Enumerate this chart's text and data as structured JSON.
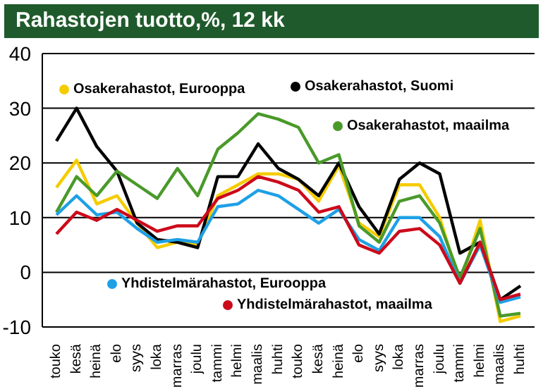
{
  "chart_data": {
    "type": "line",
    "title": "Rahastojen tuotto,%, 12 kk",
    "categories": [
      "touko",
      "kesä",
      "heinä",
      "elo",
      "syys",
      "loka",
      "marras",
      "joulu",
      "tammi",
      "helmi",
      "maalis",
      "huhti",
      "touko",
      "kesä",
      "heinä",
      "elo",
      "syys",
      "loka",
      "marras",
      "joulu",
      "tammi",
      "helmi",
      "maalis",
      "huhti"
    ],
    "series": [
      {
        "name": "Osakerahastot, Eurooppa",
        "color": "#f5cc00",
        "values": [
          15.5,
          20.5,
          12.5,
          14,
          9,
          4.5,
          5.5,
          5,
          14,
          16,
          18,
          18,
          17,
          13,
          19.5,
          9,
          6.5,
          16,
          16,
          10,
          -2,
          9.5,
          -9,
          -8
        ]
      },
      {
        "name": "Osakerahastot, Suomi",
        "color": "#000000",
        "values": [
          24,
          30,
          23,
          18.5,
          9,
          6,
          5.5,
          4.5,
          17.5,
          17.5,
          23.5,
          19,
          17,
          14,
          20,
          12,
          7,
          17,
          20,
          18,
          3.5,
          5.5,
          -5,
          -2.5
        ]
      },
      {
        "name": "Osakerahastot, maailma",
        "color": "#4a9a2a",
        "values": [
          11,
          17.5,
          14,
          18.5,
          16,
          13.5,
          19,
          14,
          22.5,
          25.5,
          29,
          28,
          26.5,
          20,
          21.5,
          8.5,
          5.5,
          13,
          14,
          9,
          -1,
          8,
          -8,
          -7.5
        ]
      },
      {
        "name": "Yhdistelmärahastot, Eurooppa",
        "color": "#1ea0e6",
        "values": [
          10.5,
          14,
          10.5,
          11,
          8,
          5.5,
          6,
          5.5,
          12,
          12.5,
          15,
          14,
          11.5,
          9,
          11.5,
          6,
          4,
          10,
          10,
          6.5,
          -2,
          5,
          -5.5,
          -4.5
        ]
      },
      {
        "name": "Yhdistelmärahastot, maailma",
        "color": "#cc0a1a",
        "values": [
          7,
          11,
          9.5,
          11.5,
          9.5,
          7.5,
          8.5,
          8.5,
          13.5,
          15,
          17.5,
          16.5,
          15,
          11,
          12,
          5,
          3.5,
          7.5,
          8,
          5,
          -2,
          5.5,
          -5,
          -4
        ]
      }
    ],
    "ylim": [
      -10,
      40
    ],
    "yticks": [
      -10,
      0,
      10,
      20,
      30,
      40
    ],
    "grid": "y",
    "legend": "bottom left",
    "marker": "none",
    "line_style": "solid"
  }
}
